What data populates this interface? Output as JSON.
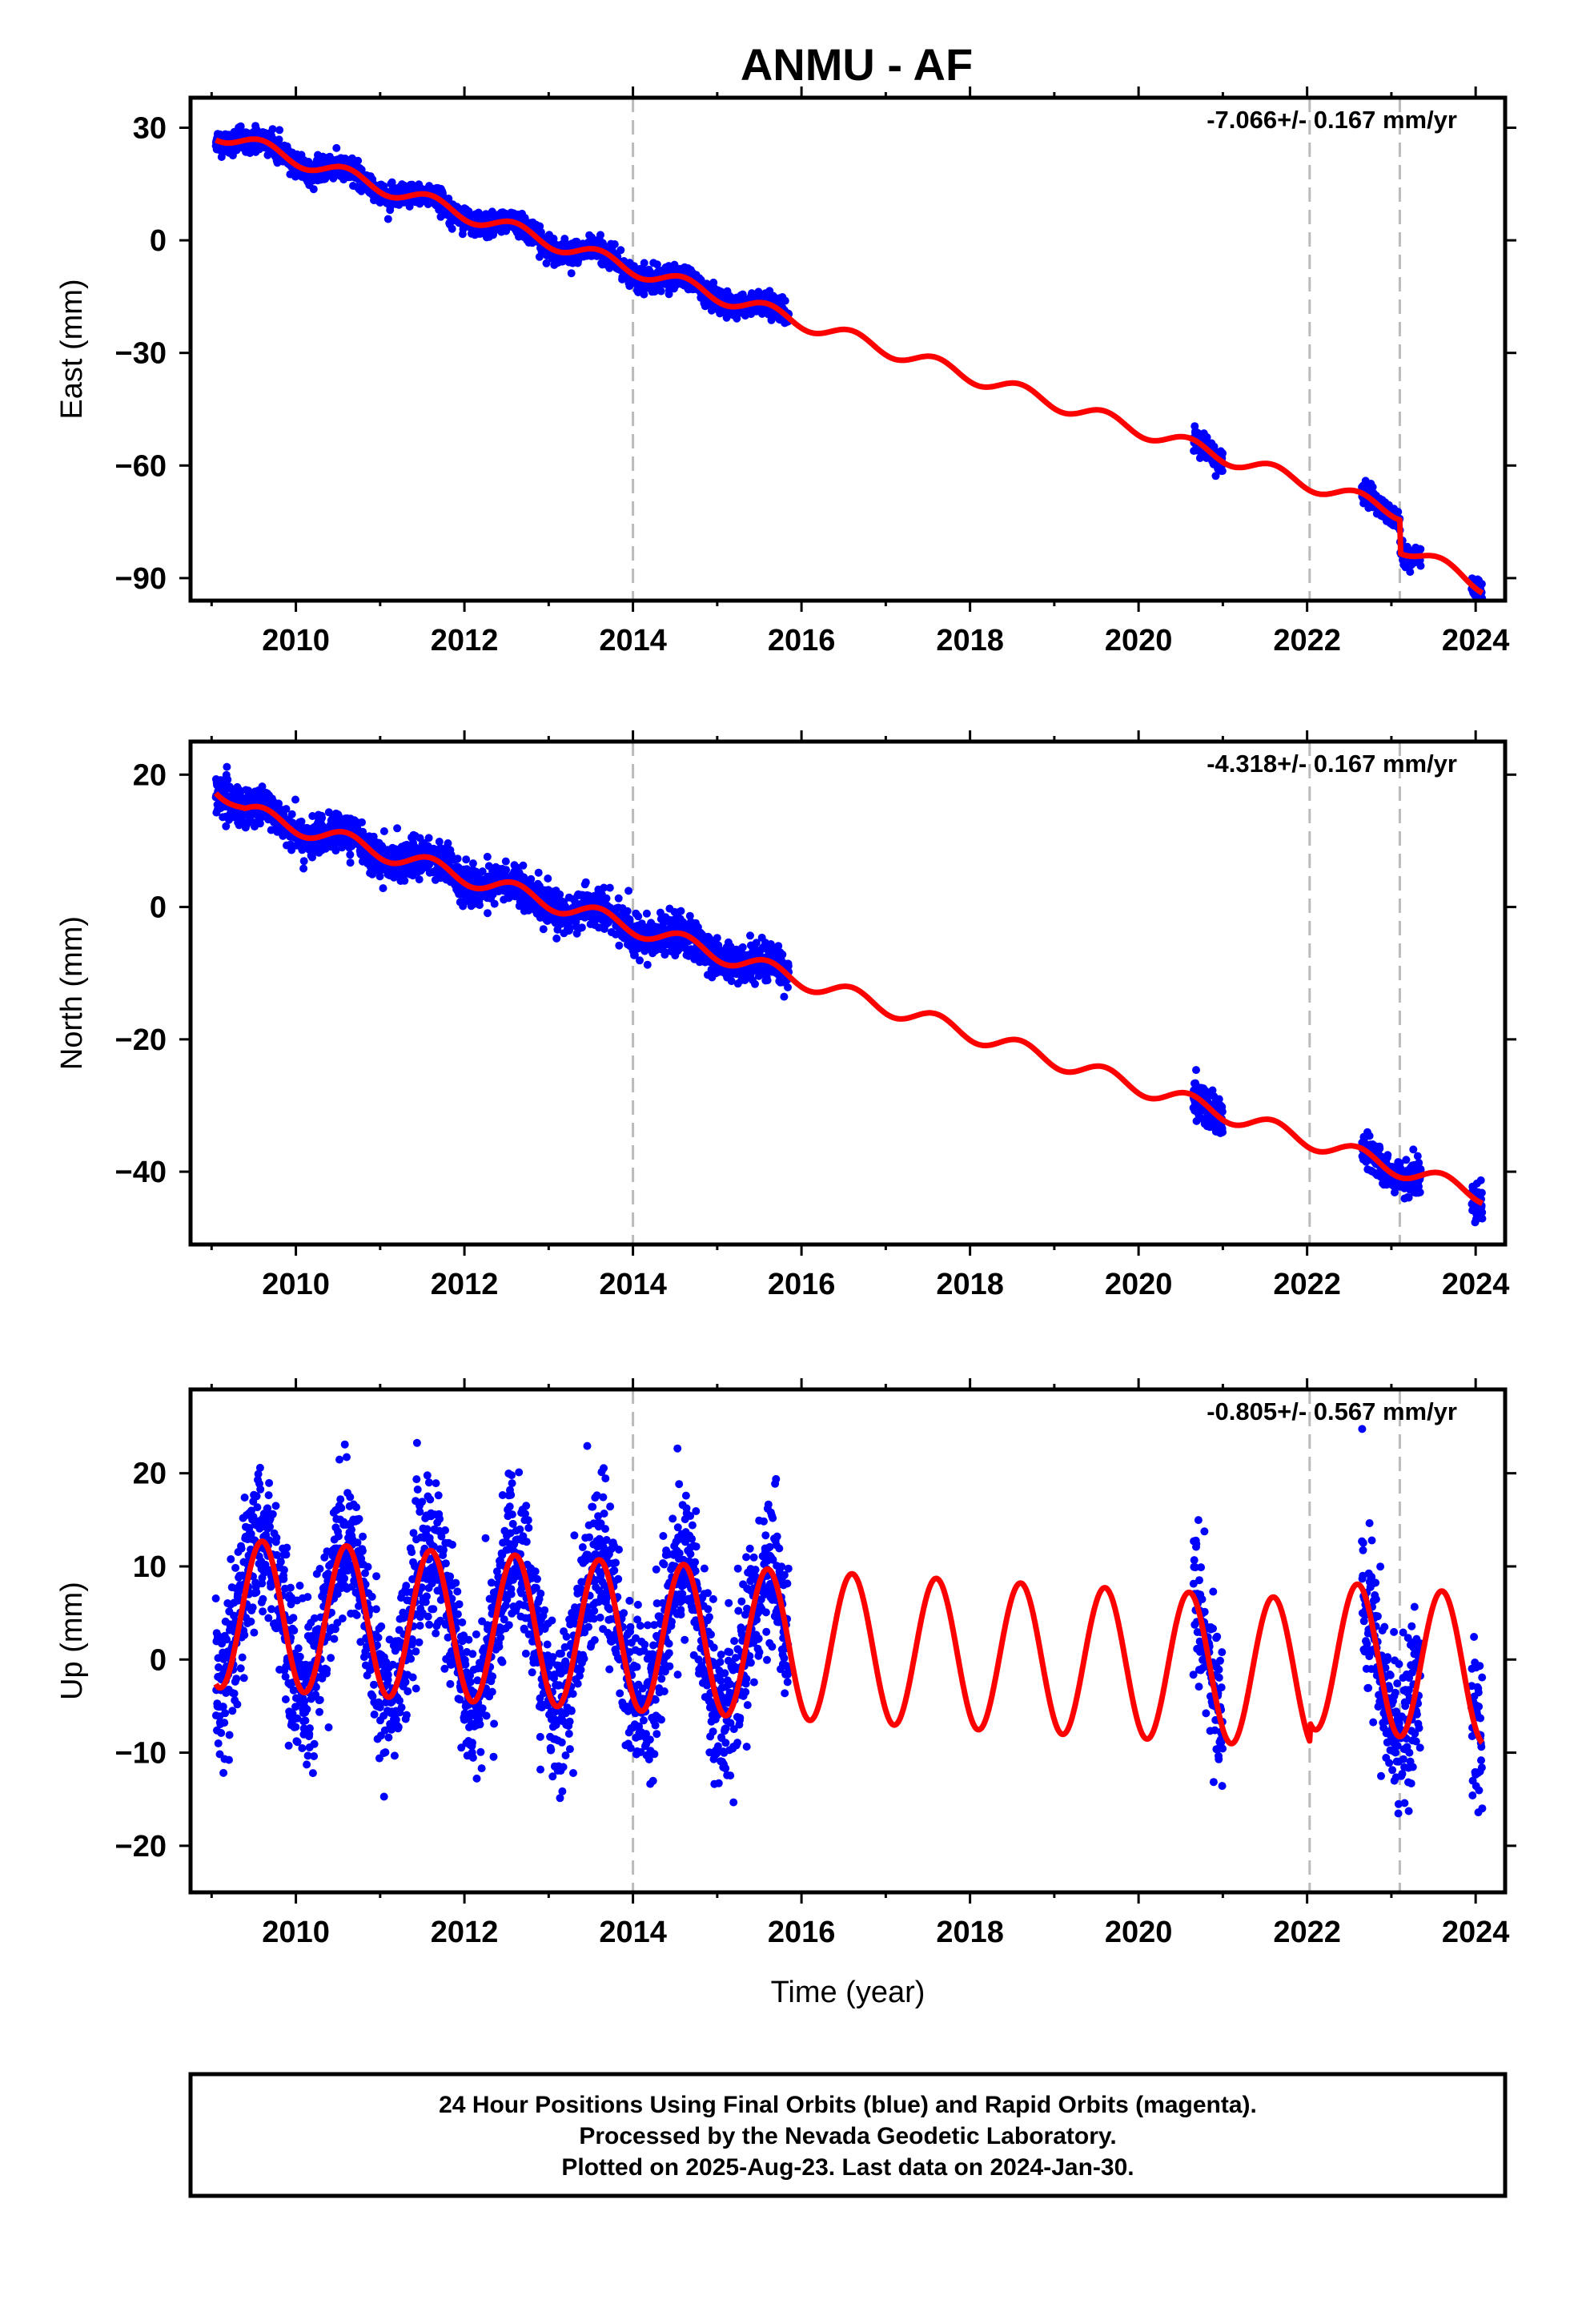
{
  "title": "ANMU - AF",
  "xlabel": "Time (year)",
  "footer": {
    "line1": "24 Hour Positions Using Final Orbits (blue) and Rapid Orbits (magenta).",
    "line2": "Processed by the Nevada Geodetic Laboratory.",
    "line3": "Plotted on 2025-Aug-23. Last data on 2024-Jan-30."
  },
  "colors": {
    "data": "#0000ff",
    "model": "#ff0000",
    "event_lines": "#bbbbbb",
    "frame": "#000000"
  },
  "chart_data": [
    {
      "type": "scatter",
      "ylabel": "East (mm)",
      "rate_label": "-7.066+/- 0.167 mm/yr",
      "xlim": [
        2008.75,
        2024.35
      ],
      "ylim": [
        -96,
        38
      ],
      "xticks": [
        2010,
        2012,
        2014,
        2016,
        2018,
        2020,
        2022,
        2024
      ],
      "yticks": [
        30,
        0,
        -30,
        -60,
        -90
      ],
      "ytick_labels": [
        "30",
        "0",
        "−30",
        "−60",
        "−90"
      ],
      "event_lines": [
        2014.0,
        2022.03,
        2023.1
      ],
      "series": [
        {
          "kind": "points",
          "segments": [
            [
              2009.05,
              2015.85
            ],
            [
              2020.65,
              2021.0
            ],
            [
              2022.65,
              2023.35
            ],
            [
              2023.95,
              2024.08
            ]
          ],
          "trend": [
            [
              2009.0,
              29.0
            ],
            [
              2014.0,
              -7.5
            ],
            [
              2023.1,
              -72.5
            ],
            [
              2023.11,
              -81.5
            ],
            [
              2024.08,
              -92.0
            ]
          ],
          "seasonal_amplitude": 2.0,
          "scatter": 1.5
        },
        {
          "kind": "model",
          "trend": [
            [
              2009.0,
              29.0
            ],
            [
              2014.0,
              -7.5
            ],
            [
              2023.1,
              -72.5
            ],
            [
              2023.11,
              -81.5
            ],
            [
              2024.08,
              -92.0
            ]
          ],
          "seasonal_amplitude": 2.0,
          "x_range": [
            2009.05,
            2024.08
          ]
        }
      ]
    },
    {
      "type": "scatter",
      "ylabel": "North (mm)",
      "rate_label": "-4.318+/- 0.167 mm/yr",
      "xlim": [
        2008.75,
        2024.35
      ],
      "ylim": [
        -51,
        25
      ],
      "xticks": [
        2010,
        2012,
        2014,
        2016,
        2018,
        2020,
        2022,
        2024
      ],
      "yticks": [
        20,
        0,
        -20,
        -40
      ],
      "ytick_labels": [
        "20",
        "0",
        "−20",
        "−40"
      ],
      "event_lines": [
        2014.0,
        2022.03,
        2023.1
      ],
      "series": [
        {
          "kind": "points",
          "segments": [
            [
              2009.05,
              2015.85
            ],
            [
              2020.65,
              2021.0
            ],
            [
              2022.65,
              2023.35
            ],
            [
              2023.95,
              2024.08
            ]
          ],
          "trend": [
            [
              2009.0,
              19.0
            ],
            [
              2009.4,
              14.5
            ],
            [
              2014.0,
              -3.0
            ],
            [
              2024.08,
              -43.5
            ]
          ],
          "seasonal_amplitude": 1.3,
          "scatter": 1.4
        },
        {
          "kind": "model",
          "trend": [
            [
              2009.0,
              19.0
            ],
            [
              2009.4,
              14.5
            ],
            [
              2014.0,
              -3.0
            ],
            [
              2024.08,
              -43.5
            ]
          ],
          "seasonal_amplitude": 1.3,
          "x_range": [
            2009.05,
            2024.08
          ]
        }
      ]
    },
    {
      "type": "scatter",
      "ylabel": "Up (mm)",
      "rate_label": "-0.805+/- 0.567 mm/yr",
      "xlim": [
        2008.75,
        2024.35
      ],
      "ylim": [
        -25,
        29
      ],
      "xticks": [
        2010,
        2012,
        2014,
        2016,
        2018,
        2020,
        2022,
        2024
      ],
      "yticks": [
        20,
        10,
        0,
        -10,
        -20
      ],
      "ytick_labels": [
        "20",
        "10",
        "0",
        "−10",
        "−20"
      ],
      "event_lines": [
        2014.0,
        2022.03,
        2023.1
      ],
      "series": [
        {
          "kind": "points",
          "segments": [
            [
              2009.05,
              2015.85
            ],
            [
              2020.65,
              2021.0
            ],
            [
              2022.65,
              2023.35
            ],
            [
              2023.95,
              2024.08
            ]
          ],
          "trend": [
            [
              2009.0,
              5.0
            ],
            [
              2022.03,
              -1.5
            ],
            [
              2022.04,
              0.5
            ],
            [
              2024.08,
              -1.0
            ]
          ],
          "seasonal_amplitude": 8.0,
          "scatter": 4.0
        },
        {
          "kind": "model",
          "trend": [
            [
              2009.0,
              5.0
            ],
            [
              2022.03,
              -1.5
            ],
            [
              2022.04,
              0.5
            ],
            [
              2024.08,
              -1.0
            ]
          ],
          "seasonal_amplitude": 8.0,
          "x_range": [
            2009.05,
            2024.08
          ]
        }
      ]
    }
  ]
}
